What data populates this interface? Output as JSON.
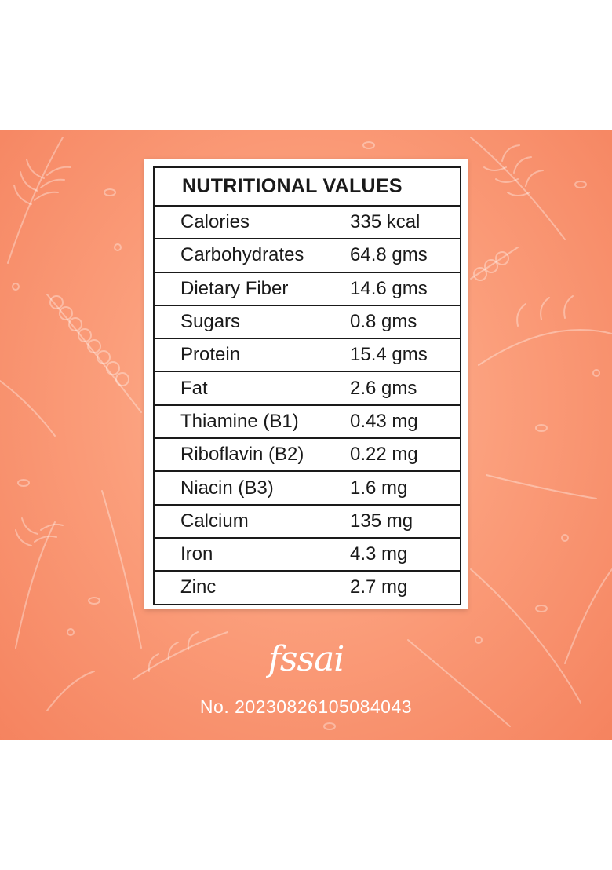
{
  "table": {
    "title": "NUTRITIONAL VALUES",
    "rows": [
      {
        "nutrient": "Calories",
        "value": "335 kcal"
      },
      {
        "nutrient": "Carbohydrates",
        "value": "64.8 gms"
      },
      {
        "nutrient": "Dietary Fiber",
        "value": "14.6 gms"
      },
      {
        "nutrient": "Sugars",
        "value": "0.8 gms"
      },
      {
        "nutrient": "Protein",
        "value": "15.4 gms"
      },
      {
        "nutrient": "Fat",
        "value": "2.6 gms"
      },
      {
        "nutrient": "Thiamine (B1)",
        "value": "0.43 mg"
      },
      {
        "nutrient": "Riboflavin (B2)",
        "value": "0.22 mg"
      },
      {
        "nutrient": "Niacin (B3)",
        "value": "1.6 mg"
      },
      {
        "nutrient": "Calcium",
        "value": "135 mg"
      },
      {
        "nutrient": "Iron",
        "value": "4.3 mg"
      },
      {
        "nutrient": "Zinc",
        "value": "2.7 mg"
      }
    ]
  },
  "footer": {
    "logo_text": "fssai",
    "license_number": "No. 20230826105084043"
  },
  "colors": {
    "background_center": "#fdb89a",
    "background_edge": "#f5835f",
    "line": "#1a1a1a"
  }
}
